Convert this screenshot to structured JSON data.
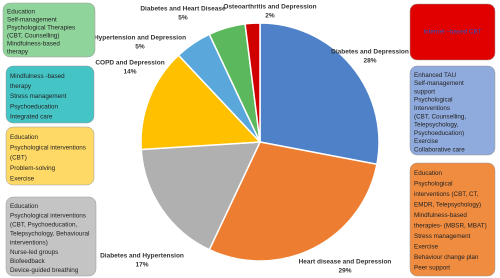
{
  "chart_data": {
    "type": "pie",
    "categories": [
      "Diabetes and Depression",
      "Heart disease and Depression",
      "Diabetes and Hypertension",
      "COPD and Depression",
      "Hypertension and Depression",
      "Diabetes and Heart Disease",
      "Osteoarthritis and Depression"
    ],
    "values": [
      28,
      29,
      17,
      14,
      5,
      5,
      2
    ],
    "value_labels": [
      "28%",
      "29%",
      "17%",
      "14%",
      "5%",
      "5%",
      "2%"
    ],
    "colors": [
      "#4f81c9",
      "#ed7d31",
      "#b0b0b0",
      "#ffc000",
      "#5aa7dc",
      "#5cb85c",
      "#d00000"
    ],
    "annotations": [
      {
        "color": "#8fd49b",
        "lines": [
          "Education",
          "Self-management",
          "Psychological Therapies",
          "(CBT, Counselling)",
          "Mindfulness-based",
          "therapy"
        ]
      },
      {
        "color": "#45c4c6",
        "lines": [
          "Mindfulness -based",
          "therapy",
          "Stress management",
          "Psychoeducation",
          "Integrated care"
        ]
      },
      {
        "color": "#ffd966",
        "lines": [
          "Education",
          "Psychological interventions",
          "(CBT)",
          "Problem-solving",
          "Exercise"
        ]
      },
      {
        "color": "#c4c4c4",
        "lines": [
          "Education",
          "Psychological interventions",
          "(CBT, Psychoeducation,",
          "Telepsychology, Behavioural",
          "interventions)",
          "Nurse-led groups",
          "Biofeedback",
          "Device-guided breathing"
        ]
      },
      {
        "color": "#e00000",
        "lines": [
          "Internet –based CBT"
        ]
      },
      {
        "color": "#8faadc",
        "lines": [
          "Enhanced TAU",
          "Self-management",
          "support",
          "Psychological",
          "Interventions",
          "(CBT, Counselling,",
          "Telepsychology,",
          "Psychoeducation)",
          "Exercise",
          "Collaborative care"
        ]
      },
      {
        "color": "#f08c40",
        "lines": [
          "Education",
          "Psychological",
          "interventions (CBT, CT,",
          "EMDR, Telepsychology)",
          "Mindfulness-based",
          "therapies- (MBSR, MBAT)",
          "Stress management",
          "Exercise",
          "Behaviour change plan",
          "Peer support"
        ]
      }
    ]
  }
}
